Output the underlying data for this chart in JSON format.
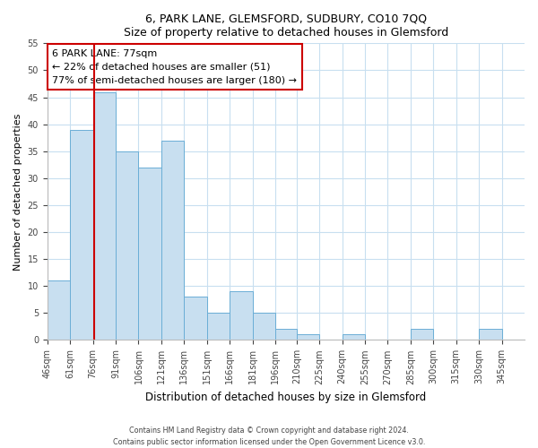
{
  "title": "6, PARK LANE, GLEMSFORD, SUDBURY, CO10 7QQ",
  "subtitle": "Size of property relative to detached houses in Glemsford",
  "xlabel": "Distribution of detached houses by size in Glemsford",
  "ylabel": "Number of detached properties",
  "bar_color": "#c8dff0",
  "bar_edge_color": "#6baed6",
  "marker_color": "#cc0000",
  "bin_labels": [
    "46sqm",
    "61sqm",
    "76sqm",
    "91sqm",
    "106sqm",
    "121sqm",
    "136sqm",
    "151sqm",
    "166sqm",
    "181sqm",
    "196sqm",
    "210sqm",
    "225sqm",
    "240sqm",
    "255sqm",
    "270sqm",
    "285sqm",
    "300sqm",
    "315sqm",
    "330sqm",
    "345sqm"
  ],
  "bin_edges": [
    46,
    61,
    76,
    91,
    106,
    121,
    136,
    151,
    166,
    181,
    196,
    210,
    225,
    240,
    255,
    270,
    285,
    300,
    315,
    330,
    345,
    360
  ],
  "counts": [
    11,
    39,
    46,
    35,
    32,
    37,
    8,
    5,
    9,
    5,
    2,
    1,
    0,
    1,
    0,
    0,
    2,
    0,
    0,
    2,
    0
  ],
  "property_value": 77,
  "annotation_title": "6 PARK LANE: 77sqm",
  "annotation_line1": "← 22% of detached houses are smaller (51)",
  "annotation_line2": "77% of semi-detached houses are larger (180) →",
  "ylim_max": 55,
  "yticks": [
    0,
    5,
    10,
    15,
    20,
    25,
    30,
    35,
    40,
    45,
    50,
    55
  ],
  "footer1": "Contains HM Land Registry data © Crown copyright and database right 2024.",
  "footer2": "Contains public sector information licensed under the Open Government Licence v3.0."
}
